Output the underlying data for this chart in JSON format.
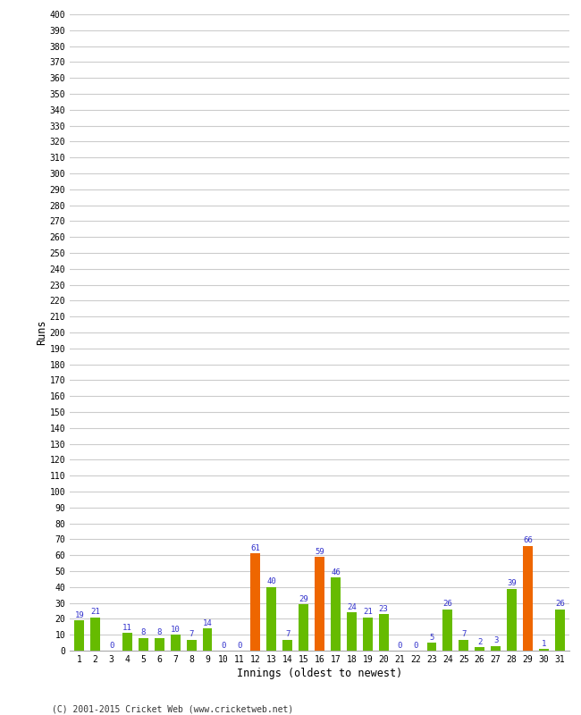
{
  "xlabel": "Innings (oldest to newest)",
  "ylabel": "Runs",
  "categories": [
    "1",
    "2",
    "3",
    "4",
    "5",
    "6",
    "7",
    "8",
    "9",
    "10",
    "11",
    "12",
    "13",
    "14",
    "15",
    "16",
    "17",
    "18",
    "19",
    "20",
    "21",
    "22",
    "23",
    "24",
    "25",
    "26",
    "27",
    "28",
    "29",
    "30",
    "31"
  ],
  "values": [
    19,
    21,
    0,
    11,
    8,
    8,
    10,
    7,
    14,
    0,
    0,
    61,
    40,
    7,
    29,
    59,
    46,
    24,
    21,
    23,
    0,
    0,
    5,
    26,
    7,
    2,
    3,
    39,
    66,
    1,
    26
  ],
  "bar_colors": [
    "#66bb00",
    "#66bb00",
    "#66bb00",
    "#66bb00",
    "#66bb00",
    "#66bb00",
    "#66bb00",
    "#66bb00",
    "#66bb00",
    "#66bb00",
    "#66bb00",
    "#ee6600",
    "#66bb00",
    "#66bb00",
    "#66bb00",
    "#ee6600",
    "#66bb00",
    "#66bb00",
    "#66bb00",
    "#66bb00",
    "#66bb00",
    "#66bb00",
    "#66bb00",
    "#66bb00",
    "#66bb00",
    "#66bb00",
    "#66bb00",
    "#66bb00",
    "#ee6600",
    "#66bb00",
    "#66bb00"
  ],
  "ylim": [
    0,
    400
  ],
  "yticks": [
    0,
    10,
    20,
    30,
    40,
    50,
    60,
    70,
    80,
    90,
    100,
    110,
    120,
    130,
    140,
    150,
    160,
    170,
    180,
    190,
    200,
    210,
    220,
    230,
    240,
    250,
    260,
    270,
    280,
    290,
    300,
    310,
    320,
    330,
    340,
    350,
    360,
    370,
    380,
    390,
    400
  ],
  "grid_color": "#cccccc",
  "background_color": "#ffffff",
  "label_color": "#3333cc",
  "footer": "(C) 2001-2015 Cricket Web (www.cricketweb.net)",
  "bar_width": 0.6,
  "figsize": [
    6.5,
    8.0
  ],
  "dpi": 100
}
